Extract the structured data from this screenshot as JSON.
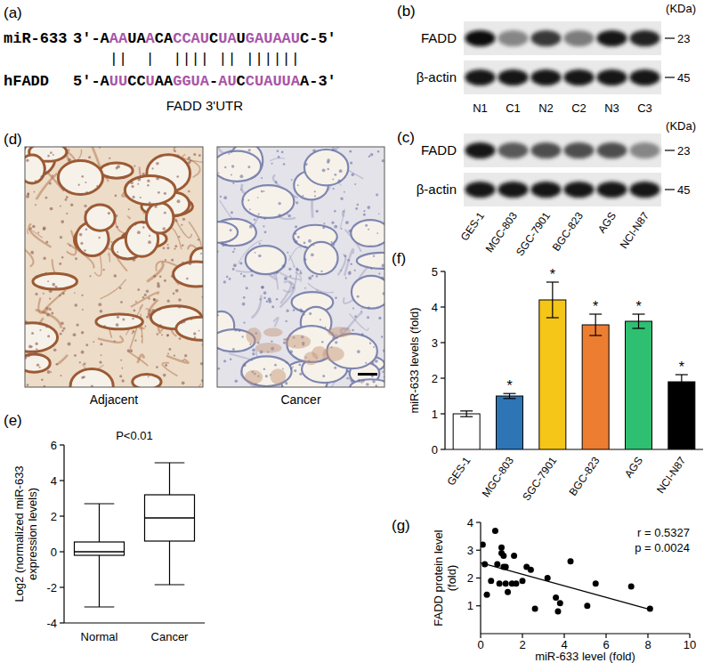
{
  "figure": {
    "a": {
      "label": "(a)",
      "rows": [
        {
          "name": "miR-633",
          "prefix": "3'-",
          "sequence": "AAAUAACACCAUCUAUGAUAAUC",
          "suffix": "-5'"
        },
        {
          "name": "hFADD",
          "prefix": "5'-",
          "sequence": "AUUCCUAAGGUA-AUCCUAUUAA",
          "suffix": "-3'"
        }
      ],
      "match": " ||  |  |||| || |||||| ",
      "caption": "FADD 3'UTR"
    },
    "b": {
      "label": "(b)",
      "unit": "(KDa)",
      "lanes": [
        "N1",
        "C1",
        "N2",
        "C2",
        "N3",
        "C3"
      ],
      "rows": [
        {
          "name": "FADD",
          "kda": 23,
          "band_intensity": [
            1.0,
            0.45,
            0.8,
            0.5,
            0.95,
            0.9
          ]
        },
        {
          "name": "β-actin",
          "kda": 45,
          "band_intensity": [
            0.95,
            0.95,
            0.95,
            0.95,
            0.95,
            0.95
          ]
        }
      ]
    },
    "c": {
      "label": "(c)",
      "unit": "(KDa)",
      "lanes": [
        "GES-1",
        "MGC-803",
        "SGC-7901",
        "BGC-823",
        "AGS",
        "NCI-N87"
      ],
      "rows": [
        {
          "name": "FADD",
          "kda": 23,
          "band_intensity": [
            0.95,
            0.65,
            0.7,
            0.7,
            0.7,
            0.45
          ]
        },
        {
          "name": "β-actin",
          "kda": 45,
          "band_intensity": [
            0.95,
            0.95,
            0.95,
            0.95,
            0.95,
            0.95
          ]
        }
      ]
    },
    "d": {
      "label": "(d)",
      "images": [
        "Adjacent",
        "Cancer"
      ]
    }
  },
  "chart_data": [
    {
      "type": "box",
      "title": "(e)",
      "annotations": [
        "P<0.01"
      ],
      "y_label": "Log2 (normalized miR-633 expression levels)",
      "categories": [
        "Normal",
        "Cancer"
      ],
      "min": [
        -3.1,
        -1.85
      ],
      "q1": [
        -0.2,
        0.6
      ],
      "median": [
        0,
        1.9
      ],
      "q3": [
        0.55,
        3.2
      ],
      "max": [
        2.7,
        5.0
      ],
      "ylim": [
        -4,
        6
      ],
      "yticks": [
        -4,
        -2,
        0,
        2,
        4,
        6
      ]
    },
    {
      "type": "bar",
      "title": "(f)",
      "y_label": "miR-633 levels (fold)",
      "categories": [
        "GES-1",
        "MGC-803",
        "SGC-7901",
        "BGC-823",
        "AGS",
        "NCI-N87"
      ],
      "values": [
        1.0,
        1.5,
        4.2,
        3.5,
        3.6,
        1.9
      ],
      "errors": [
        0.08,
        0.07,
        0.5,
        0.3,
        0.2,
        0.2
      ],
      "significance": [
        null,
        "*",
        "*",
        "*",
        "*",
        "*"
      ],
      "colors": [
        "#ffffff",
        "#2e75b6",
        "#f5c518",
        "#ed7d31",
        "#2fbf71",
        "#000000"
      ],
      "ylim": [
        0,
        5
      ],
      "yticks": [
        0,
        1,
        2,
        3,
        4,
        5
      ]
    },
    {
      "type": "scatter",
      "title": "(g)",
      "x_label": "miR-633 level (fold)",
      "y_label": "FADD protein level (fold)",
      "annotations": [
        "r = 0.5327",
        "p = 0.0024"
      ],
      "x": [
        0.1,
        0.2,
        0.3,
        0.5,
        0.7,
        0.8,
        0.9,
        1.0,
        1.0,
        1.1,
        1.1,
        1.2,
        1.2,
        1.3,
        1.5,
        1.6,
        1.7,
        2.0,
        2.2,
        2.4,
        2.6,
        3.2,
        3.6,
        3.7,
        3.8,
        4.3,
        5.1,
        5.5,
        7.2,
        8.1
      ],
      "values": [
        3.2,
        2.5,
        1.4,
        1.9,
        3.7,
        2.5,
        1.8,
        3.1,
        2.9,
        2.8,
        2.4,
        2.4,
        1.8,
        1.5,
        1.8,
        2.8,
        1.8,
        1.9,
        2.4,
        2.3,
        0.9,
        2.0,
        1.3,
        0.8,
        1.1,
        2.6,
        1.0,
        1.8,
        1.7,
        0.9
      ],
      "trend_line": {
        "x": [
          0,
          8.1
        ],
        "values": [
          2.55,
          0.87
        ]
      },
      "color": "#000000",
      "marker": "circle",
      "xlim": [
        0,
        10
      ],
      "xticks": [
        0,
        2,
        4,
        6,
        8,
        10
      ],
      "ylim": [
        0,
        4
      ],
      "yticks": [
        1,
        2,
        3,
        4
      ]
    }
  ]
}
